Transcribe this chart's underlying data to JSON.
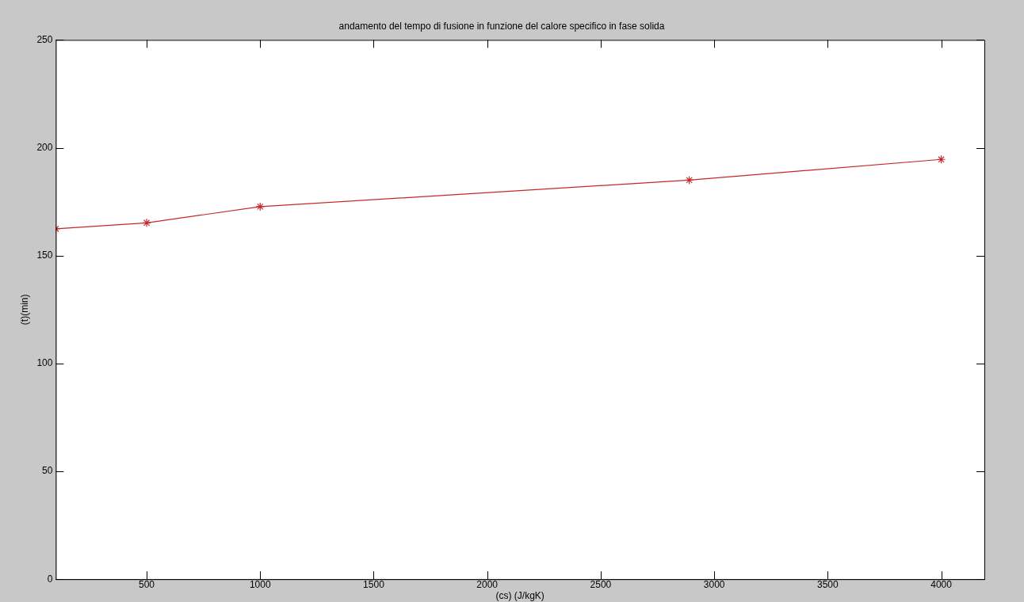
{
  "chart_data": {
    "type": "line",
    "title": "andamento del tempo di fusione in funzione del calore specifico in fase solida",
    "xlabel": "(cs) (J/kgK)",
    "ylabel": "(t)(min)",
    "x": [
      100,
      500,
      1000,
      2890,
      4000
    ],
    "series": [
      {
        "color": "#c62828",
        "values": [
          162.4,
          165.2,
          172.7,
          185,
          194.6
        ]
      }
    ],
    "xlim": [
      100,
      4190
    ],
    "xticks": [
      500,
      1000,
      1500,
      2000,
      2500,
      3000,
      3500,
      4000
    ],
    "ylim": [
      0,
      250
    ],
    "yticks": [
      0,
      50,
      100,
      150,
      200,
      250
    ],
    "legend": false,
    "marker": "cross",
    "line_style": "solid"
  }
}
